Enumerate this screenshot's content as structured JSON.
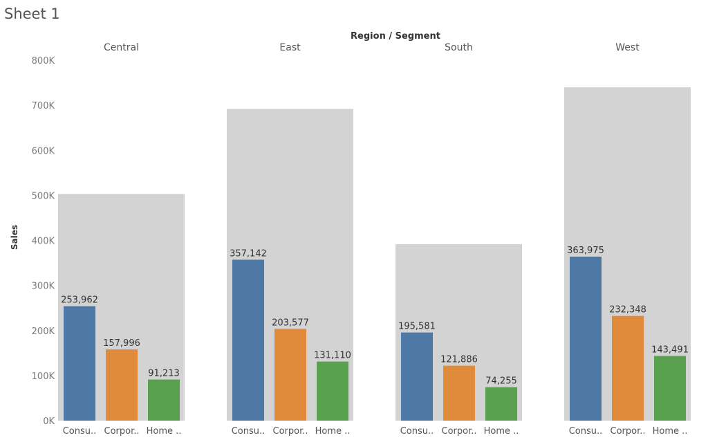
{
  "sheet": {
    "title": "Sheet 1"
  },
  "chart_data": {
    "type": "bar",
    "column_header_title": "Region / Segment",
    "ylabel": "Sales",
    "ylim": [
      0,
      800000
    ],
    "y_ticks": [
      {
        "value": 0,
        "label": "0K"
      },
      {
        "value": 100000,
        "label": "100K"
      },
      {
        "value": 200000,
        "label": "200K"
      },
      {
        "value": 300000,
        "label": "300K"
      },
      {
        "value": 400000,
        "label": "400K"
      },
      {
        "value": 500000,
        "label": "500K"
      },
      {
        "value": 600000,
        "label": "600K"
      },
      {
        "value": 700000,
        "label": "700K"
      },
      {
        "value": 800000,
        "label": "800K"
      }
    ],
    "segment_labels": [
      "Consu..",
      "Corpor..",
      "Home .."
    ],
    "series_colors": [
      "#4e79a7",
      "#e08a3c",
      "#59a14f"
    ],
    "region_total_color": "#d3d3d3",
    "regions": [
      {
        "name": "Central",
        "values": [
          253962,
          157996,
          91213
        ],
        "labels": [
          "253,962",
          "157,996",
          "91,213"
        ],
        "total": 503171
      },
      {
        "name": "East",
        "values": [
          357142,
          203577,
          131110
        ],
        "labels": [
          "357,142",
          "203,577",
          "131,110"
        ],
        "total": 691829
      },
      {
        "name": "South",
        "values": [
          195581,
          121886,
          74255
        ],
        "labels": [
          "195,581",
          "121,886",
          "74,255"
        ],
        "total": 391722
      },
      {
        "name": "West",
        "values": [
          363975,
          232348,
          143491
        ],
        "labels": [
          "363,975",
          "232,348",
          "143,491"
        ],
        "total": 739814
      }
    ]
  }
}
